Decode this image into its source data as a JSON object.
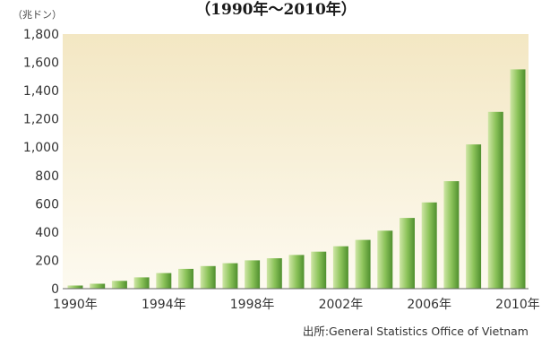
{
  "chart_data": {
    "type": "bar",
    "subtitle": "（1990年〜2010年）",
    "ylabel": "（兆ドン）",
    "source": "出所:General Statistics Office of Vietnam",
    "categories": [
      "1990年",
      "1991年",
      "1992年",
      "1993年",
      "1994年",
      "1995年",
      "1996年",
      "1997年",
      "1998年",
      "1999年",
      "2000年",
      "2001年",
      "2002年",
      "2003年",
      "2004年",
      "2005年",
      "2006年",
      "2007年",
      "2008年",
      "2009年",
      "2010年"
    ],
    "values": [
      22,
      35,
      55,
      80,
      110,
      140,
      160,
      180,
      200,
      215,
      238,
      262,
      300,
      345,
      410,
      500,
      610,
      760,
      1020,
      1250,
      1550
    ],
    "x_tick_labels": [
      "1990年",
      "1994年",
      "1998年",
      "2002年",
      "2006年",
      "2010年"
    ],
    "y_tick_labels": [
      "0",
      "200",
      "400",
      "600",
      "800",
      "1,000",
      "1,200",
      "1,400",
      "1,600",
      "1,800"
    ],
    "ylim": [
      0,
      1800
    ],
    "grid": false,
    "colors": {
      "bar_light": "#cfe6a6",
      "bar_mid": "#8cc35a",
      "bar_dark": "#4f8f2e",
      "plot_bg_top": "#f3e7c3",
      "plot_bg_bottom": "#fdfaf0"
    }
  }
}
